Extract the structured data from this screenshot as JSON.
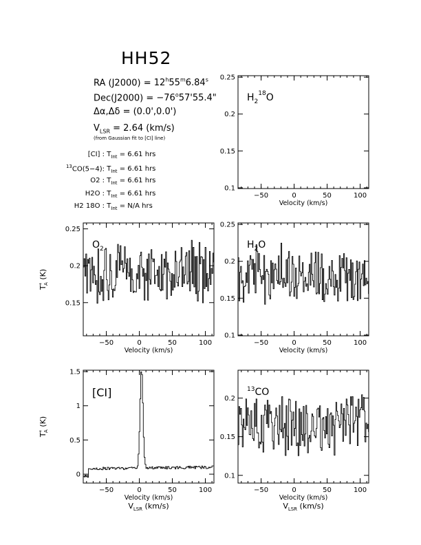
{
  "title": "HH52",
  "info": {
    "ra_label": "RA (J2000) =",
    "ra_h": "12",
    "ra_m": "55",
    "ra_s": "6.84",
    "dec_label": "Dec(J2000) =",
    "dec_d": "−76",
    "dec_m": "57",
    "dec_s": "55.4\"",
    "offset_label": "Δα,Δδ =",
    "offset_value": "(0.0',0.0')",
    "vlsr_label": "V",
    "vlsr_sub": "LSR",
    "vlsr_value": "= 2.64 (km/s)",
    "vlsr_note": "(from Gaussian fit to [CI] line)"
  },
  "integrations": [
    {
      "line": "[CI] :",
      "tint": "6.61 hrs"
    },
    {
      "line_pre": "13",
      "line": "CO(5−4):",
      "tint": "6.61 hrs"
    },
    {
      "line": "O2 :",
      "tint": "6.61 hrs"
    },
    {
      "line": "H2O :",
      "tint": "6.61 hrs"
    },
    {
      "line": "H2 18O :",
      "tint": "N/A hrs"
    }
  ],
  "tint_label": "T",
  "tint_sub": "Int",
  "chart_data": [
    {
      "id": "h218o",
      "type": "line",
      "label": "H2 18O",
      "xlabel": "Velocity (km/s)",
      "ylabel": "",
      "xlim": [
        -85,
        113
      ],
      "ylim": [
        0.099,
        0.252
      ],
      "xticks": [
        -50,
        0,
        50,
        100
      ],
      "xtick_labels": [
        "−50",
        "0",
        "50",
        "100"
      ],
      "yticks": [
        0.1,
        0.15,
        0.2,
        0.25
      ],
      "ytick_labels": [
        "0.1",
        "0.15",
        "0.2",
        "0.25"
      ],
      "series": []
    },
    {
      "id": "o2",
      "type": "line",
      "label": "O2",
      "xlabel": "Velocity (km/s)",
      "ylabel": "T*A (K)",
      "xlim": [
        -85,
        113
      ],
      "ylim": [
        0.105,
        0.258
      ],
      "xticks": [
        -50,
        0,
        50,
        100
      ],
      "xtick_labels": [
        "−50",
        "0",
        "50",
        "100"
      ],
      "yticks": [
        0.15,
        0.2,
        0.25
      ],
      "ytick_labels": [
        "0.15",
        "0.2",
        "0.25"
      ],
      "series": [
        {
          "noise_mean": 0.19,
          "noise_amp": 0.035,
          "seed": 11
        }
      ]
    },
    {
      "id": "h2o",
      "type": "line",
      "label": "H2O",
      "xlabel": "Velocity (km/s)",
      "ylabel": "",
      "xlim": [
        -85,
        113
      ],
      "ylim": [
        0.099,
        0.252
      ],
      "xticks": [
        -50,
        0,
        50,
        100
      ],
      "xtick_labels": [
        "−50",
        "0",
        "50",
        "100"
      ],
      "yticks": [
        0.1,
        0.15,
        0.2,
        0.25
      ],
      "ytick_labels": [
        "0.1",
        "0.15",
        "0.2",
        "0.25"
      ],
      "series": [
        {
          "noise_mean": 0.18,
          "noise_amp": 0.035,
          "seed": 23
        }
      ]
    },
    {
      "id": "ci",
      "type": "line",
      "label": "[CI]",
      "xlabel": "Velocity (km/s)",
      "xlabel2": "V",
      "xlabel2_sub": "LSR",
      "xlabel2_rest": " (km/s)",
      "ylabel": "T*A (K)",
      "xlim": [
        -85,
        113
      ],
      "ylim": [
        -0.13,
        1.52
      ],
      "xticks": [
        -50,
        0,
        50,
        100
      ],
      "xtick_labels": [
        "−50",
        "0",
        "50",
        "100"
      ],
      "yticks": [
        0,
        0.5,
        1,
        1.5
      ],
      "ytick_labels": [
        "0",
        "0.5",
        "1",
        "1.5"
      ],
      "series": [
        {
          "baseline": 0.08,
          "peak_v": 2.64,
          "peak_h": 1.45,
          "width": 2.2,
          "noise_amp": 0.02,
          "seed": 5
        }
      ]
    },
    {
      "id": "13co",
      "type": "line",
      "label": "13CO",
      "xlabel": "Velocity (km/s)",
      "xlabel2": "V",
      "xlabel2_sub": "LSR",
      "xlabel2_rest": " (km/s)",
      "ylabel": "",
      "xlim": [
        -85,
        113
      ],
      "ylim": [
        0.09,
        0.236
      ],
      "xticks": [
        -50,
        0,
        50,
        100
      ],
      "xtick_labels": [
        "−50",
        "0",
        "50",
        "100"
      ],
      "yticks": [
        0.1,
        0.15,
        0.2
      ],
      "ytick_labels": [
        "0.1",
        "0.15",
        "0.2"
      ],
      "series": [
        {
          "noise_mean": 0.165,
          "noise_amp": 0.035,
          "seed": 37
        }
      ]
    }
  ]
}
